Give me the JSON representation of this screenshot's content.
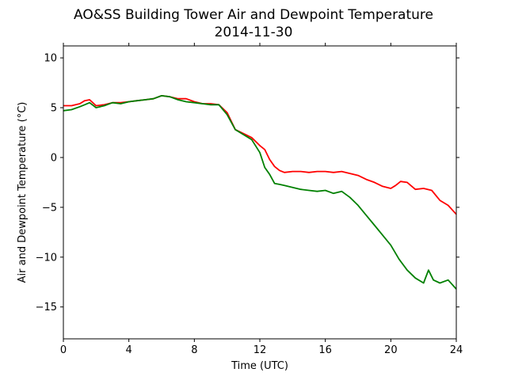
{
  "chart_data": {
    "type": "line",
    "title": "AO&SS Building Tower Air and Dewpoint Temperature",
    "subtitle": "2014-11-30",
    "xlabel": "Time (UTC)",
    "ylabel": "Air and Dewpoint Temperature (°C)",
    "xlim": [
      0,
      24
    ],
    "ylim": [
      -18.2,
      11.2
    ],
    "xticks": [
      0,
      4,
      8,
      12,
      16,
      20,
      24
    ],
    "yticks": [
      10,
      5,
      0,
      -5,
      -10,
      -15
    ],
    "grid": false,
    "series": [
      {
        "color": "#ff0000",
        "x": [
          0,
          0.5,
          1.0,
          1.3,
          1.6,
          2.0,
          2.5,
          3.0,
          3.5,
          4.0,
          4.5,
          5.0,
          5.5,
          6.0,
          6.5,
          7.0,
          7.5,
          8.0,
          8.5,
          9.0,
          9.5,
          10.0,
          10.5,
          11.0,
          11.5,
          12.0,
          12.3,
          12.6,
          12.9,
          13.2,
          13.5,
          14.0,
          14.5,
          15.0,
          15.5,
          16.0,
          16.5,
          17.0,
          17.5,
          18.0,
          18.5,
          19.0,
          19.5,
          20.0,
          20.3,
          20.6,
          21.0,
          21.5,
          22.0,
          22.5,
          23.0,
          23.5,
          24.0
        ],
        "values": [
          5.2,
          5.2,
          5.4,
          5.7,
          5.8,
          5.2,
          5.3,
          5.5,
          5.5,
          5.6,
          5.7,
          5.8,
          5.9,
          6.2,
          6.1,
          5.9,
          5.9,
          5.6,
          5.4,
          5.4,
          5.3,
          4.5,
          2.8,
          2.4,
          2.0,
          1.2,
          0.8,
          -0.2,
          -0.9,
          -1.3,
          -1.5,
          -1.4,
          -1.4,
          -1.5,
          -1.4,
          -1.4,
          -1.5,
          -1.4,
          -1.6,
          -1.8,
          -2.2,
          -2.5,
          -2.9,
          -3.1,
          -2.8,
          -2.4,
          -2.5,
          -3.2,
          -3.1,
          -3.3,
          -4.3,
          -4.8,
          -5.7
        ]
      },
      {
        "color": "#008000",
        "x": [
          0,
          0.5,
          1.0,
          1.3,
          1.6,
          2.0,
          2.5,
          3.0,
          3.5,
          4.0,
          4.5,
          5.0,
          5.5,
          6.0,
          6.5,
          7.0,
          7.5,
          8.0,
          8.5,
          9.0,
          9.5,
          10.0,
          10.5,
          11.0,
          11.5,
          12.0,
          12.3,
          12.6,
          12.9,
          13.2,
          13.5,
          14.0,
          14.5,
          15.0,
          15.5,
          16.0,
          16.5,
          17.0,
          17.5,
          18.0,
          18.5,
          19.0,
          19.5,
          20.0,
          20.5,
          21.0,
          21.5,
          22.0,
          22.3,
          22.6,
          23.0,
          23.5,
          24.0
        ],
        "values": [
          4.7,
          4.8,
          5.1,
          5.3,
          5.5,
          5.0,
          5.2,
          5.5,
          5.4,
          5.6,
          5.7,
          5.8,
          5.9,
          6.2,
          6.1,
          5.8,
          5.6,
          5.5,
          5.4,
          5.3,
          5.3,
          4.3,
          2.8,
          2.3,
          1.8,
          0.5,
          -1.0,
          -1.7,
          -2.6,
          -2.7,
          -2.8,
          -3.0,
          -3.2,
          -3.3,
          -3.4,
          -3.3,
          -3.6,
          -3.4,
          -4.0,
          -4.8,
          -5.8,
          -6.8,
          -7.8,
          -8.8,
          -10.2,
          -11.3,
          -12.1,
          -12.6,
          -11.3,
          -12.3,
          -12.6,
          -12.3,
          -13.2
        ]
      }
    ]
  }
}
